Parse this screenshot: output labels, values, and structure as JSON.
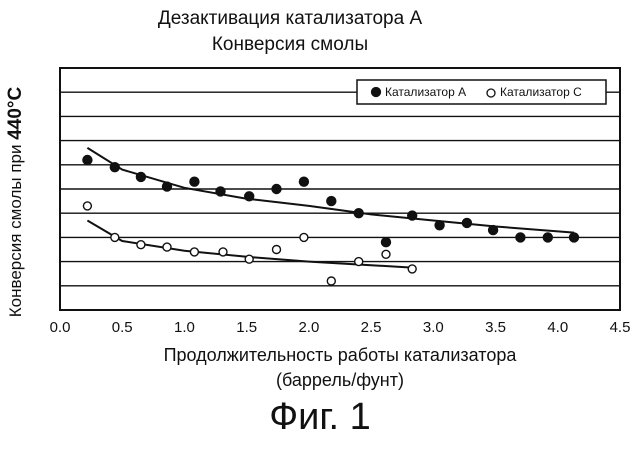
{
  "chart_data": {
    "type": "scatter",
    "title": "Дезактивация катализатора А",
    "subtitle": "Конверсия смолы",
    "ylabel_prefix": "Конверсия смолы при ",
    "ylabel_temp": "440°C",
    "xlabel": "Продолжительность работы катализатора",
    "xlabel_unit": "(баррель/фунт)",
    "xlim": [
      0.0,
      4.5
    ],
    "xticks": [
      "0.0",
      "0.5",
      "1.0",
      "1.5",
      "2.0",
      "2.5",
      "3.0",
      "3.5",
      "4.0",
      "4.5"
    ],
    "ylim": [
      0,
      10
    ],
    "grid": "horizontal",
    "legend_position": "top-right",
    "series": [
      {
        "name": "Катализатор А",
        "marker": "filled-circle",
        "x": [
          0.22,
          0.44,
          0.65,
          0.86,
          1.08,
          1.29,
          1.52,
          1.74,
          1.96,
          2.18,
          2.4,
          2.62,
          2.83,
          3.05,
          3.27,
          3.48,
          3.7,
          3.92,
          4.13
        ],
        "y": [
          6.2,
          5.9,
          5.5,
          5.1,
          5.3,
          4.9,
          4.7,
          5.0,
          5.3,
          4.5,
          4.0,
          2.8,
          3.9,
          3.5,
          3.6,
          3.3,
          3.0,
          3.0,
          3.0
        ],
        "fit": [
          [
            0.22,
            6.7
          ],
          [
            0.5,
            5.8
          ],
          [
            1.0,
            5.05
          ],
          [
            1.5,
            4.6
          ],
          [
            2.0,
            4.3
          ],
          [
            2.5,
            3.95
          ],
          [
            3.0,
            3.7
          ],
          [
            3.5,
            3.45
          ],
          [
            4.13,
            3.2
          ]
        ]
      },
      {
        "name": "Катализатор С",
        "marker": "open-circle",
        "x": [
          0.22,
          0.44,
          0.65,
          0.86,
          1.08,
          1.31,
          1.52,
          1.74,
          1.96,
          2.18,
          2.4,
          2.62,
          2.83
        ],
        "y": [
          4.3,
          3.0,
          2.7,
          2.6,
          2.4,
          2.4,
          2.1,
          2.5,
          3.0,
          1.2,
          2.0,
          2.3,
          1.7
        ],
        "fit": [
          [
            0.22,
            3.7
          ],
          [
            0.5,
            2.85
          ],
          [
            1.0,
            2.45
          ],
          [
            1.5,
            2.2
          ],
          [
            2.0,
            2.0
          ],
          [
            2.5,
            1.85
          ],
          [
            2.83,
            1.75
          ]
        ]
      }
    ]
  },
  "figure_caption": "Фиг. 1"
}
